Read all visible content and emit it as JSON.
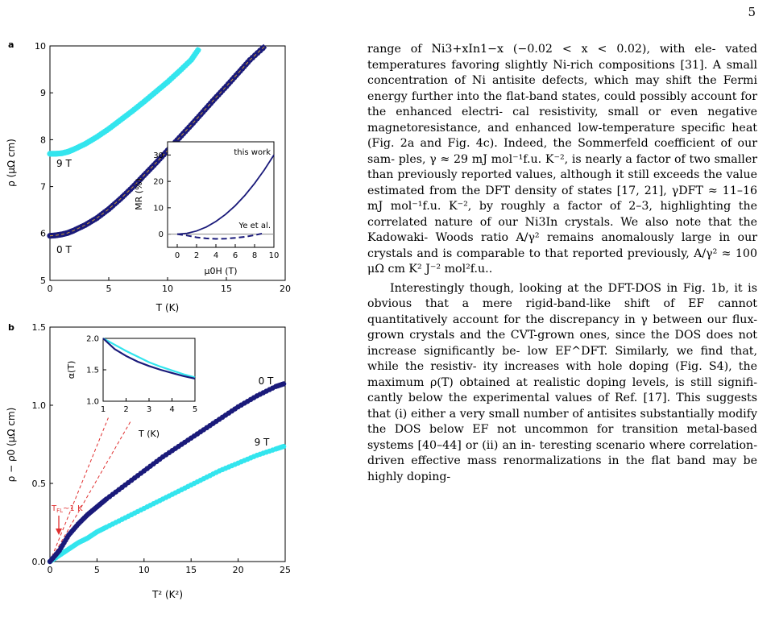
{
  "page_number": "5",
  "figure": {
    "panel_a": {
      "label": "a",
      "xlabel": "T (K)",
      "ylabel": "ρ (μΩ cm)",
      "xticks": [
        "0",
        "5",
        "10",
        "15",
        "20"
      ],
      "yticks": [
        "5",
        "6",
        "7",
        "8",
        "9",
        "10"
      ],
      "label_0T": "0 T",
      "label_9T": "9 T",
      "inset": {
        "xlabel": "μ0H (T)",
        "ylabel": "MR (%)",
        "xticks": [
          "0",
          "2",
          "4",
          "6",
          "8",
          "10"
        ],
        "yticks": [
          "0",
          "10",
          "20",
          "30"
        ],
        "label_this_work": "this work",
        "label_ye": "Ye et al."
      }
    },
    "panel_b": {
      "label": "b",
      "xlabel": "T² (K²)",
      "ylabel": "ρ − ρ0 (μΩ cm)",
      "xticks": [
        "0",
        "5",
        "10",
        "15",
        "20",
        "25"
      ],
      "yticks": [
        "0.0",
        "0.5",
        "1.0",
        "1.5"
      ],
      "label_0T": "0 T",
      "label_9T": "9 T",
      "tfl_label": "T_FL~1 K",
      "inset": {
        "xlabel": "T (K)",
        "ylabel": "α(T)",
        "xticks": [
          "1",
          "2",
          "3",
          "4",
          "5"
        ],
        "yticks": [
          "1.0",
          "1.5",
          "2.0"
        ]
      }
    },
    "colors": {
      "zero_field": "#1a1a7a",
      "nine_tesla": "#33e5ee",
      "fit_dashed": "#e03030",
      "arrow": "#e03030"
    }
  },
  "chart_data": [
    {
      "type": "line",
      "panel": "a",
      "xlabel": "T (K)",
      "ylabel": "ρ (μΩ cm)",
      "xlim": [
        0,
        20
      ],
      "ylim": [
        5,
        10
      ],
      "series": [
        {
          "name": "0 T",
          "x": [
            0,
            0.5,
            1,
            1.5,
            2,
            3,
            4,
            5,
            6,
            7,
            8,
            9,
            10,
            11,
            12,
            13,
            14,
            15,
            16,
            17,
            18.3
          ],
          "y": [
            5.95,
            5.96,
            5.98,
            6.01,
            6.06,
            6.18,
            6.33,
            6.52,
            6.74,
            6.98,
            7.24,
            7.5,
            7.77,
            8.04,
            8.31,
            8.59,
            8.87,
            9.14,
            9.42,
            9.7,
            10.0
          ]
        },
        {
          "name": "9 T",
          "x": [
            0,
            0.5,
            1,
            1.5,
            2,
            3,
            4,
            5,
            6,
            7,
            8,
            9,
            10,
            11,
            12,
            12.7
          ],
          "y": [
            7.7,
            7.7,
            7.71,
            7.74,
            7.79,
            7.91,
            8.06,
            8.23,
            8.42,
            8.61,
            8.81,
            9.02,
            9.23,
            9.46,
            9.7,
            9.95
          ]
        }
      ]
    },
    {
      "type": "line",
      "panel": "a-inset",
      "xlabel": "μ0H (T)",
      "ylabel": "MR (%)",
      "xlim": [
        -1,
        10
      ],
      "ylim": [
        -5,
        35
      ],
      "series": [
        {
          "name": "this work",
          "x": [
            0,
            1,
            2,
            3,
            4,
            5,
            6,
            7,
            8,
            9,
            10
          ],
          "y": [
            0,
            0.3,
            1.2,
            2.7,
            4.8,
            7.5,
            10.8,
            14.7,
            19.2,
            24.3,
            30.0
          ]
        },
        {
          "name": "Ye et al.",
          "x": [
            0,
            1,
            2,
            3,
            4,
            5,
            6,
            7,
            8,
            9
          ],
          "y": [
            0,
            -0.5,
            -1.2,
            -1.6,
            -1.8,
            -1.7,
            -1.4,
            -1.0,
            -0.4,
            0.4
          ]
        }
      ]
    },
    {
      "type": "line",
      "panel": "b",
      "xlabel": "T² (K²)",
      "ylabel": "ρ − ρ0 (μΩ cm)",
      "xlim": [
        0,
        25
      ],
      "ylim": [
        0,
        1.5
      ],
      "series": [
        {
          "name": "0 T",
          "x": [
            0,
            1,
            2,
            3,
            4,
            5,
            6,
            8,
            10,
            12,
            14,
            16,
            18,
            20,
            22,
            24,
            25
          ],
          "y": [
            0,
            0.07,
            0.17,
            0.24,
            0.3,
            0.35,
            0.4,
            0.49,
            0.58,
            0.67,
            0.75,
            0.83,
            0.91,
            0.99,
            1.06,
            1.12,
            1.14
          ]
        },
        {
          "name": "9 T",
          "x": [
            0,
            1,
            2,
            3,
            4,
            5,
            6,
            8,
            10,
            12,
            14,
            16,
            18,
            20,
            22,
            24,
            25
          ],
          "y": [
            0,
            0.04,
            0.08,
            0.12,
            0.15,
            0.19,
            0.22,
            0.28,
            0.34,
            0.4,
            0.46,
            0.52,
            0.58,
            0.63,
            0.68,
            0.72,
            0.74
          ]
        }
      ]
    },
    {
      "type": "line",
      "panel": "b-inset",
      "xlabel": "T (K)",
      "ylabel": "α(T)",
      "xlim": [
        1,
        5
      ],
      "ylim": [
        1.0,
        2.0
      ],
      "series": [
        {
          "name": "0 T",
          "x": [
            1,
            1.5,
            2,
            2.5,
            3,
            3.5,
            4,
            4.5,
            5
          ],
          "y": [
            2.0,
            1.83,
            1.72,
            1.63,
            1.56,
            1.5,
            1.45,
            1.4,
            1.36
          ]
        },
        {
          "name": "9 T",
          "x": [
            1,
            1.5,
            2,
            2.5,
            3,
            3.5,
            4,
            4.5,
            5
          ],
          "y": [
            2.0,
            1.9,
            1.8,
            1.71,
            1.62,
            1.55,
            1.49,
            1.43,
            1.38
          ]
        }
      ]
    }
  ],
  "text_column": {
    "paragraph1": [
      "range of Ni3+xIn1−x (−0.02 < x < 0.02), with ele-",
      "vated temperatures favoring slightly Ni-rich compositions",
      "[31]. A small concentration of Ni antisite defects, which",
      "may shift the Fermi energy further into the flat-band",
      "states, could possibly account for the enhanced electri-",
      "cal resistivity, small or even negative magnetoresistance,",
      "and enhanced low-temperature specific heat (Fig. 2a and",
      "Fig. 4c). Indeed, the Sommerfeld coefficient of our sam-",
      "ples, γ ≈ 29 mJ mol⁻¹f.u. K⁻², is nearly a factor of two",
      "smaller than previously reported values, although it still",
      "exceeds the value estimated from the DFT density of",
      "states [17, 21], γDFT ≈ 11–16 mJ mol⁻¹f.u. K⁻², by roughly",
      "a factor of 2–3, highlighting the correlated nature of",
      "our Ni3In crystals. We also note that the Kadowaki-",
      "Woods ratio A/γ² remains anomalously large in our",
      "crystals and is comparable to that reported previously,",
      "A/γ² ≈ 100 μΩ cm K² J⁻² mol²f.u.."
    ],
    "paragraph2": [
      "Interestingly though, looking at the DFT-DOS in",
      "Fig. 1b, it is obvious that a mere rigid-band-like shift of",
      "EF cannot quantitatively account for the discrepancy in",
      "γ between our flux-grown crystals and the CVT-grown",
      "ones, since the DOS does not increase significantly be-",
      "low EF^DFT. Similarly, we find that, while the resistiv-",
      "ity increases with hole doping (Fig. S4), the maximum",
      "ρ(T) obtained at realistic doping levels, is still signifi-",
      "cantly below the experimental values of Ref. [17]. This",
      "suggests that (i) either a very small number of antisites",
      "substantially modify the DOS below EF not uncommon",
      "for transition metal-based systems [40–44] or (ii) an in-",
      "teresting scenario where correlation-driven effective mass",
      "renormalizations in the flat band may be highly doping-"
    ]
  }
}
